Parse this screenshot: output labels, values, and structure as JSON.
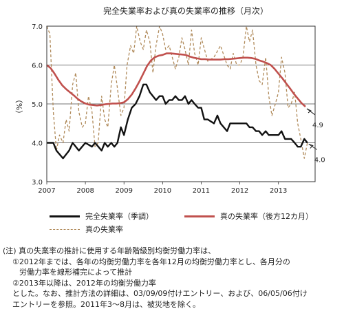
{
  "chart_data": {
    "type": "line",
    "title": "完全失業率および真の失業率の推移（月次）",
    "ylabel": "（%）",
    "xlabel": "",
    "ylim": [
      3.0,
      7.0
    ],
    "yticks": [
      "3.0",
      "4.0",
      "5.0",
      "6.0",
      "7.0"
    ],
    "xlim": [
      2007.0,
      2013.95
    ],
    "xticks": [
      "2007",
      "2008",
      "2009",
      "2010",
      "2011",
      "2012",
      "2013"
    ],
    "grid": true,
    "legend_position": "bottom",
    "series": [
      {
        "name": "完全失業率（季調）",
        "color": "#111111",
        "style": "solid",
        "points": [
          [
            2007.0,
            4.0
          ],
          [
            2007.17,
            4.0
          ],
          [
            2007.25,
            3.8
          ],
          [
            2007.42,
            3.6
          ],
          [
            2007.58,
            3.8
          ],
          [
            2007.67,
            4.0
          ],
          [
            2007.83,
            3.8
          ],
          [
            2008.0,
            4.0
          ],
          [
            2008.17,
            3.9
          ],
          [
            2008.25,
            4.0
          ],
          [
            2008.42,
            3.8
          ],
          [
            2008.5,
            4.0
          ],
          [
            2008.58,
            3.9
          ],
          [
            2008.67,
            4.0
          ],
          [
            2008.75,
            3.9
          ],
          [
            2008.83,
            4.0
          ],
          [
            2008.92,
            4.4
          ],
          [
            2009.0,
            4.2
          ],
          [
            2009.1,
            4.6
          ],
          [
            2009.2,
            4.9
          ],
          [
            2009.3,
            5.0
          ],
          [
            2009.4,
            5.2
          ],
          [
            2009.5,
            5.5
          ],
          [
            2009.58,
            5.5
          ],
          [
            2009.67,
            5.3
          ],
          [
            2009.75,
            5.2
          ],
          [
            2009.83,
            5.1
          ],
          [
            2009.92,
            5.2
          ],
          [
            2010.0,
            5.2
          ],
          [
            2010.08,
            5.0
          ],
          [
            2010.17,
            5.1
          ],
          [
            2010.25,
            5.1
          ],
          [
            2010.33,
            5.2
          ],
          [
            2010.42,
            5.1
          ],
          [
            2010.5,
            5.1
          ],
          [
            2010.58,
            5.2
          ],
          [
            2010.67,
            5.0
          ],
          [
            2010.75,
            5.1
          ],
          [
            2010.83,
            5.0
          ],
          [
            2010.92,
            4.9
          ],
          [
            2011.0,
            4.9
          ],
          [
            2011.08,
            4.6
          ],
          [
            2011.17,
            4.6
          ],
          [
            2011.33,
            4.5
          ],
          [
            2011.42,
            4.7
          ],
          [
            2011.5,
            4.5
          ],
          [
            2011.67,
            4.3
          ],
          [
            2011.75,
            4.5
          ],
          [
            2011.83,
            4.5
          ],
          [
            2011.92,
            4.5
          ],
          [
            2012.0,
            4.5
          ],
          [
            2012.17,
            4.5
          ],
          [
            2012.25,
            4.4
          ],
          [
            2012.33,
            4.4
          ],
          [
            2012.42,
            4.3
          ],
          [
            2012.5,
            4.3
          ],
          [
            2012.58,
            4.2
          ],
          [
            2012.67,
            4.3
          ],
          [
            2012.75,
            4.2
          ],
          [
            2012.83,
            4.2
          ],
          [
            2012.92,
            4.2
          ],
          [
            2013.0,
            4.2
          ],
          [
            2013.08,
            4.3
          ],
          [
            2013.17,
            4.1
          ],
          [
            2013.25,
            4.1
          ],
          [
            2013.33,
            4.1
          ],
          [
            2013.42,
            4.0
          ],
          [
            2013.5,
            3.9
          ],
          [
            2013.58,
            3.9
          ],
          [
            2013.67,
            4.1
          ],
          [
            2013.75,
            4.0
          ]
        ]
      },
      {
        "name": "真の失業率（後方12カ月）",
        "color": "#c0504d",
        "style": "solid",
        "points": [
          [
            2007.0,
            6.0
          ],
          [
            2007.1,
            5.92
          ],
          [
            2007.2,
            5.78
          ],
          [
            2007.3,
            5.62
          ],
          [
            2007.4,
            5.48
          ],
          [
            2007.5,
            5.38
          ],
          [
            2007.6,
            5.3
          ],
          [
            2007.7,
            5.22
          ],
          [
            2007.8,
            5.13
          ],
          [
            2007.9,
            5.06
          ],
          [
            2008.0,
            5.01
          ],
          [
            2008.1,
            4.98
          ],
          [
            2008.2,
            4.97
          ],
          [
            2008.3,
            4.96
          ],
          [
            2008.4,
            4.97
          ],
          [
            2008.5,
            4.99
          ],
          [
            2008.6,
            5.0
          ],
          [
            2008.7,
            5.01
          ],
          [
            2008.8,
            5.01
          ],
          [
            2008.9,
            5.02
          ],
          [
            2009.0,
            5.04
          ],
          [
            2009.1,
            5.12
          ],
          [
            2009.2,
            5.24
          ],
          [
            2009.3,
            5.4
          ],
          [
            2009.4,
            5.58
          ],
          [
            2009.5,
            5.78
          ],
          [
            2009.6,
            5.98
          ],
          [
            2009.7,
            6.12
          ],
          [
            2009.8,
            6.2
          ],
          [
            2009.9,
            6.24
          ],
          [
            2010.0,
            6.26
          ],
          [
            2010.1,
            6.3
          ],
          [
            2010.2,
            6.3
          ],
          [
            2010.3,
            6.29
          ],
          [
            2010.4,
            6.28
          ],
          [
            2010.5,
            6.27
          ],
          [
            2010.6,
            6.26
          ],
          [
            2010.7,
            6.22
          ],
          [
            2010.8,
            6.19
          ],
          [
            2010.9,
            6.17
          ],
          [
            2011.0,
            6.15
          ],
          [
            2011.1,
            6.15
          ],
          [
            2011.2,
            6.14
          ],
          [
            2011.3,
            6.14
          ],
          [
            2011.4,
            6.14
          ],
          [
            2011.5,
            6.14
          ],
          [
            2011.6,
            6.15
          ],
          [
            2011.7,
            6.15
          ],
          [
            2011.8,
            6.16
          ],
          [
            2011.9,
            6.17
          ],
          [
            2012.0,
            6.18
          ],
          [
            2012.1,
            6.19
          ],
          [
            2012.2,
            6.19
          ],
          [
            2012.3,
            6.18
          ],
          [
            2012.4,
            6.16
          ],
          [
            2012.5,
            6.12
          ],
          [
            2012.6,
            6.09
          ],
          [
            2012.7,
            6.05
          ],
          [
            2012.8,
            6.0
          ],
          [
            2012.9,
            5.9
          ],
          [
            2013.0,
            5.78
          ],
          [
            2013.1,
            5.66
          ],
          [
            2013.2,
            5.53
          ],
          [
            2013.3,
            5.4
          ],
          [
            2013.4,
            5.26
          ],
          [
            2013.5,
            5.14
          ],
          [
            2013.6,
            5.02
          ],
          [
            2013.7,
            4.93
          ]
        ]
      },
      {
        "name": "真の失業率",
        "color": "#b08a5a",
        "style": "dashed",
        "points": [
          [
            2007.0,
            7.0
          ],
          [
            2007.08,
            6.8
          ],
          [
            2007.17,
            4.8
          ],
          [
            2007.25,
            3.8
          ],
          [
            2007.33,
            4.2
          ],
          [
            2007.42,
            4.0
          ],
          [
            2007.5,
            4.6
          ],
          [
            2007.58,
            4.3
          ],
          [
            2007.67,
            5.5
          ],
          [
            2007.75,
            5.8
          ],
          [
            2007.83,
            4.8
          ],
          [
            2007.92,
            4.4
          ],
          [
            2008.0,
            4.5
          ],
          [
            2008.08,
            5.2
          ],
          [
            2008.17,
            4.8
          ],
          [
            2008.25,
            3.9
          ],
          [
            2008.33,
            4.0
          ],
          [
            2008.42,
            5.2
          ],
          [
            2008.5,
            4.6
          ],
          [
            2008.58,
            4.4
          ],
          [
            2008.67,
            5.5
          ],
          [
            2008.75,
            6.0
          ],
          [
            2008.83,
            5.4
          ],
          [
            2008.92,
            4.7
          ],
          [
            2009.0,
            4.9
          ],
          [
            2009.08,
            6.0
          ],
          [
            2009.17,
            6.5
          ],
          [
            2009.25,
            6.3
          ],
          [
            2009.33,
            7.0
          ],
          [
            2009.42,
            6.6
          ],
          [
            2009.5,
            6.4
          ],
          [
            2009.58,
            6.9
          ],
          [
            2009.67,
            6.6
          ],
          [
            2009.75,
            5.8
          ],
          [
            2009.83,
            6.5
          ],
          [
            2009.92,
            7.0
          ],
          [
            2010.0,
            6.8
          ],
          [
            2010.08,
            6.4
          ],
          [
            2010.17,
            6.5
          ],
          [
            2010.25,
            6.2
          ],
          [
            2010.33,
            5.9
          ],
          [
            2010.42,
            6.2
          ],
          [
            2010.5,
            6.7
          ],
          [
            2010.58,
            6.4
          ],
          [
            2010.67,
            6.0
          ],
          [
            2010.75,
            6.9
          ],
          [
            2010.83,
            6.3
          ],
          [
            2010.92,
            6.0
          ],
          [
            2011.0,
            6.7
          ],
          [
            2011.17,
            6.1
          ],
          [
            2011.33,
            6.2
          ],
          [
            2011.5,
            6.5
          ],
          [
            2011.67,
            6.0
          ],
          [
            2011.75,
            5.9
          ],
          [
            2011.83,
            6.3
          ],
          [
            2011.92,
            6.0
          ],
          [
            2012.0,
            6.0
          ],
          [
            2012.08,
            6.2
          ],
          [
            2012.17,
            7.0
          ],
          [
            2012.25,
            6.6
          ],
          [
            2012.33,
            6.9
          ],
          [
            2012.42,
            6.0
          ],
          [
            2012.5,
            5.6
          ],
          [
            2012.58,
            5.5
          ],
          [
            2012.67,
            6.2
          ],
          [
            2012.75,
            5.2
          ],
          [
            2012.83,
            4.7
          ],
          [
            2012.92,
            5.0
          ],
          [
            2013.0,
            5.3
          ],
          [
            2013.08,
            6.2
          ],
          [
            2013.17,
            5.8
          ],
          [
            2013.25,
            4.9
          ],
          [
            2013.33,
            5.0
          ],
          [
            2013.42,
            5.3
          ],
          [
            2013.5,
            4.5
          ],
          [
            2013.58,
            4.1
          ],
          [
            2013.67,
            3.6
          ],
          [
            2013.75,
            4.0
          ]
        ]
      }
    ],
    "annotations": [
      {
        "text": "4.9",
        "x": 2013.7,
        "y": 4.93
      },
      {
        "text": "4.0",
        "x": 2013.75,
        "y": 4.0
      }
    ]
  },
  "notes": {
    "l1": "(注) 真の失業率の推計に使用する年齢階級別均衡労働力率は、",
    "l2": "①2012年までは、各年の均衡労働力率を各年12月の均衡労働力率とし、各月分の",
    "l3": "労働力率を線形補完によって推計",
    "l4": "②2013年以降は、2012年の均衡労働力率",
    "l5": "とした。なお、推計方法の詳細は、03/09/09付けエントリー、および、06/05/06付け",
    "l6": "エントリーを参照。2011年3～8月は、被災地を除く。"
  }
}
